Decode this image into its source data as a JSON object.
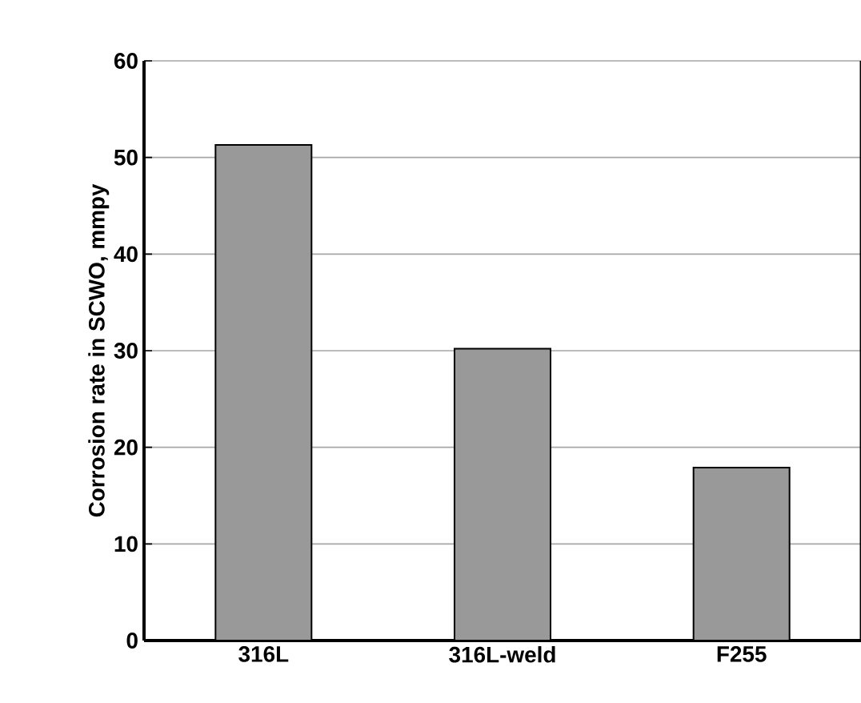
{
  "chart_data": {
    "type": "bar",
    "ylabel": "Corrosion rate in SCWO, mmpy",
    "categories": [
      "316L",
      "316L-weld",
      "F255"
    ],
    "values": [
      51.3,
      30.2,
      17.9
    ],
    "color": "#999999",
    "ylim": [
      0,
      60
    ],
    "yticks": [
      0,
      10,
      20,
      30,
      40,
      50,
      60
    ],
    "grid": "y"
  }
}
